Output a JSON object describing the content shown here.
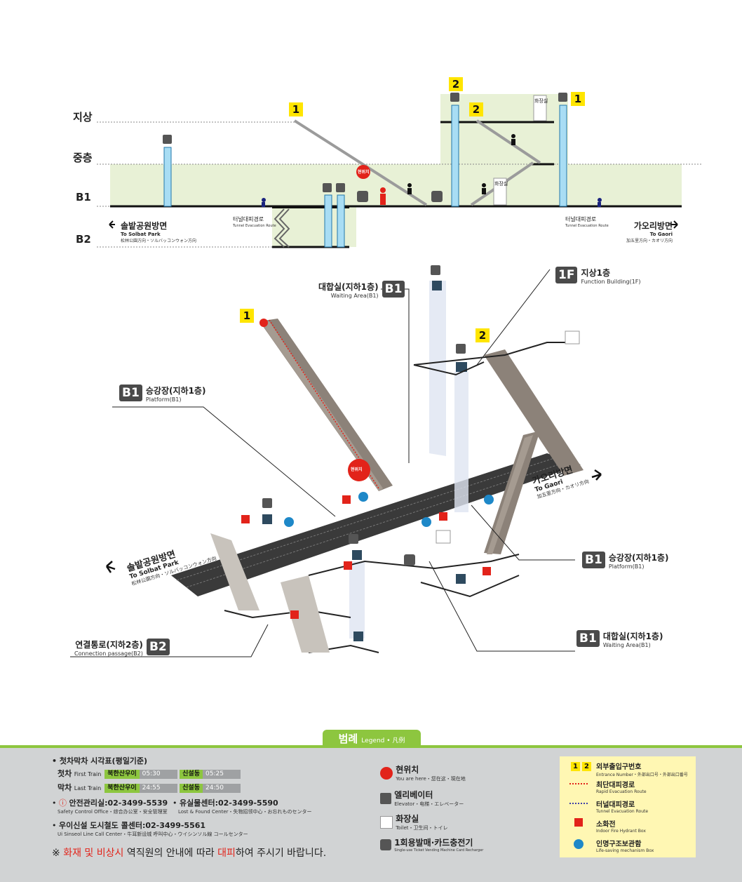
{
  "section": {
    "levels": [
      "지상",
      "중층",
      "B1",
      "B2"
    ],
    "entrance_1": "1",
    "entrance_2": "2",
    "entrance_2b": "2",
    "entrance_1b": "1",
    "you_are_here": "현위치",
    "toilet": "화장실",
    "dir_left": {
      "ko": "솔밭공원방면",
      "en": "To Solbat Park",
      "jp": "松林公園方向・ソルバッコンウォン方向"
    },
    "dir_right": {
      "ko": "가오리방면",
      "en": "To Gaori",
      "jp": "加五里方向・カオリ方向"
    },
    "tunnel_left": {
      "ko": "터널대피경로",
      "en": "Tunnel Evacuation Route"
    },
    "tunnel_right": {
      "ko": "터널대피경로",
      "en": "Tunnel Evacuation Route"
    }
  },
  "plan": {
    "entrance_1": "1",
    "entrance_2": "2",
    "waiting_top": {
      "badge": "B1",
      "ko": "대합실(지하1층)",
      "en": "Waiting Area(B1)"
    },
    "function_bldg": {
      "badge": "1F",
      "ko": "지상1층",
      "en": "Function Building(1F)"
    },
    "platform_left": {
      "badge": "B1",
      "ko": "승강장(지하1층)",
      "en": "Platform(B1)"
    },
    "platform_right": {
      "badge": "B1",
      "ko": "승강장(지하1층)",
      "en": "Platform(B1)"
    },
    "waiting_right": {
      "badge": "B1",
      "ko": "대합실(지하1층)",
      "en": "Waiting Area(B1)"
    },
    "connection": {
      "badge": "B2",
      "ko": "연결통로(지하2층)",
      "en": "Connection passage(B2)"
    },
    "dir_right": {
      "ko": "가오리방면",
      "en": "To Gaori",
      "jp": "加五里方向・カオリ方向"
    },
    "dir_left": {
      "ko": "솔밭공원방면",
      "en": "To Solbat Park",
      "jp": "松林公園方向・ソルバッコンウォン方向"
    },
    "you_are_here": "현위치"
  },
  "legend": {
    "title": "범례",
    "title_en": "Legend",
    "title_jp": "凡例",
    "timetable_title": "첫차막차 시각표(평일기준)",
    "first": {
      "ko": "첫차",
      "en": "First Train",
      "dest1": "북한산우이",
      "time1": "05:30",
      "dest2": "신설동",
      "time2": "05:25"
    },
    "last": {
      "ko": "막차",
      "en": "Last Train",
      "dest1": "북한산우이",
      "time1": "24:55",
      "dest2": "신설동",
      "time2": "24:50"
    },
    "safety": {
      "ko": "안전관리실:02-3499-5539",
      "en": "Safety Control Office・综合办公室・安全管理室"
    },
    "lost": {
      "ko": "유실물센터:02-3499-5590",
      "en": "Lost & Found Center・失物招领中心・お忘れものセンター"
    },
    "callcenter": {
      "ko": "우이신설 도시철도 콜센터:02-3499-5561",
      "en": "Ui Sinseol Line Call Center・牛耳新设城 呼叫中心・ウイシンソル線 コールセンター"
    },
    "note": {
      "p1": "※ ",
      "p2": "화재 및 비상시",
      "p3": " 역직원의 안내에 따라 ",
      "p4": "대피",
      "p5": "하여 주시기 바랍니다."
    },
    "items": [
      {
        "ko": "현위치",
        "en": "You are here・您在这・現在地"
      },
      {
        "ko": "엘리베이터",
        "en": "Elevator・电梯・エレベーター"
      },
      {
        "ko": "화장실",
        "en": "Toilet・卫生间・トイレ"
      },
      {
        "ko": "1회용발매·카드충전기",
        "en": "Single-use Ticket Vending Machine Card Recharger"
      }
    ],
    "right": [
      {
        "ko": "외부출입구번호",
        "en": "Entrance Number・外部出口号・外部出口番号"
      },
      {
        "ko": "최단대피경로",
        "en": "Rapid Evacuation Route"
      },
      {
        "ko": "터널대피경로",
        "en": "Tunnel Evacuation Route"
      },
      {
        "ko": "소화전",
        "en": "Indoor Fire Hydrant Box"
      },
      {
        "ko": "인명구조보관함",
        "en": "Life-saving mechanism Box"
      }
    ],
    "entrance_nums": [
      "1",
      "2"
    ]
  },
  "colors": {
    "green_zone": "#e8f1d6",
    "elevator": "#a8ddf4",
    "accent_green": "#8dc63f",
    "yellow": "#ffe500",
    "red": "#e2231a",
    "blue": "#1e88c8",
    "platform": "#3a3a3a"
  }
}
